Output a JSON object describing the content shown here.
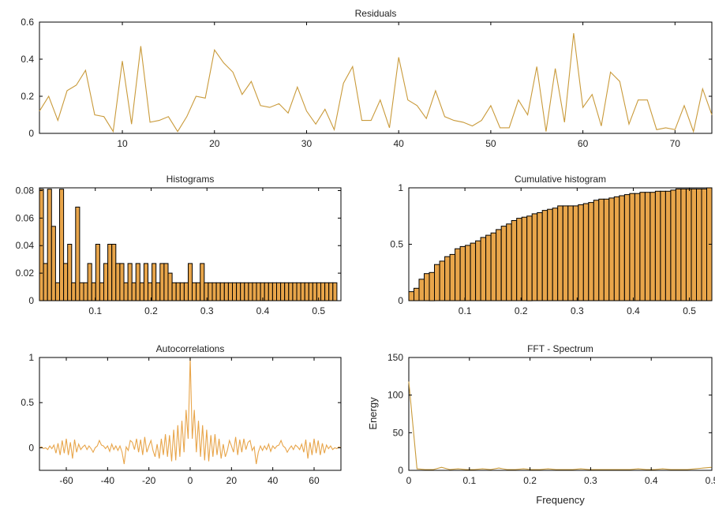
{
  "colors": {
    "series": "#e8a54a",
    "line": "#c99a3a",
    "axis": "#000000",
    "background": "#ffffff"
  },
  "chart_data": [
    {
      "type": "line",
      "title": "Residuals",
      "xlabel": "",
      "ylabel": "",
      "xlim": [
        1,
        74
      ],
      "ylim": [
        0,
        0.6
      ],
      "xticks": [
        10,
        20,
        30,
        40,
        50,
        60,
        70
      ],
      "yticks": [
        0,
        0.2,
        0.4,
        0.6
      ],
      "x": [
        1,
        2,
        3,
        4,
        5,
        6,
        7,
        8,
        9,
        10,
        11,
        12,
        13,
        14,
        15,
        16,
        17,
        18,
        19,
        20,
        21,
        22,
        23,
        24,
        25,
        26,
        27,
        28,
        29,
        30,
        31,
        32,
        33,
        34,
        35,
        36,
        37,
        38,
        39,
        40,
        41,
        42,
        43,
        44,
        45,
        46,
        47,
        48,
        49,
        50,
        51,
        52,
        53,
        54,
        55,
        56,
        57,
        58,
        59,
        60,
        61,
        62,
        63,
        64,
        65,
        66,
        67,
        68,
        69,
        70,
        71,
        72,
        73,
        74
      ],
      "values": [
        0.12,
        0.2,
        0.07,
        0.23,
        0.26,
        0.34,
        0.1,
        0.09,
        0.01,
        0.39,
        0.05,
        0.47,
        0.06,
        0.07,
        0.09,
        0.01,
        0.09,
        0.2,
        0.19,
        0.45,
        0.38,
        0.33,
        0.21,
        0.28,
        0.15,
        0.14,
        0.16,
        0.11,
        0.25,
        0.12,
        0.05,
        0.13,
        0.02,
        0.27,
        0.36,
        0.07,
        0.07,
        0.18,
        0.03,
        0.41,
        0.18,
        0.15,
        0.08,
        0.23,
        0.09,
        0.07,
        0.06,
        0.04,
        0.07,
        0.15,
        0.03,
        0.03,
        0.18,
        0.1,
        0.36,
        0.01,
        0.35,
        0.06,
        0.54,
        0.14,
        0.21,
        0.04,
        0.33,
        0.28,
        0.05,
        0.18,
        0.18,
        0.02,
        0.03,
        0.02,
        0.15,
        0.01,
        0.24,
        0.1
      ]
    },
    {
      "type": "bar",
      "title": "Histograms",
      "xlabel": "",
      "ylabel": "",
      "xlim": [
        0,
        0.54
      ],
      "ylim": [
        0,
        0.082
      ],
      "xticks": [
        0.1,
        0.2,
        0.3,
        0.4,
        0.5
      ],
      "yticks": [
        0,
        0.02,
        0.04,
        0.06,
        0.08
      ],
      "bin_width": 0.0072,
      "values": [
        0.081,
        0.027,
        0.081,
        0.054,
        0.013,
        0.081,
        0.027,
        0.041,
        0.013,
        0.068,
        0.013,
        0.013,
        0.027,
        0.013,
        0.041,
        0.013,
        0.027,
        0.041,
        0.041,
        0.027,
        0.027,
        0.013,
        0.027,
        0.013,
        0.027,
        0.013,
        0.027,
        0.013,
        0.027,
        0.013,
        0.027,
        0.027,
        0.02,
        0.013,
        0.013,
        0.013,
        0.013,
        0.027,
        0.013,
        0.013,
        0.027,
        0.013,
        0.013,
        0.013,
        0.013,
        0.013,
        0.013,
        0.013,
        0.013,
        0.013,
        0.013,
        0.013,
        0.013,
        0.013,
        0.013,
        0.013,
        0.013,
        0.013,
        0.013,
        0.013,
        0.013,
        0.013,
        0.013,
        0.013,
        0.013,
        0.013,
        0.013,
        0.013,
        0.013,
        0.013,
        0.013,
        0.013,
        0.013,
        0.013
      ]
    },
    {
      "type": "bar",
      "title": "Cumulative histogram",
      "xlabel": "",
      "ylabel": "",
      "xlim": [
        0,
        0.54
      ],
      "ylim": [
        0,
        1
      ],
      "xticks": [
        0.1,
        0.2,
        0.3,
        0.4,
        0.5
      ],
      "yticks": [
        0,
        0.5,
        1
      ],
      "values": [
        0.08,
        0.11,
        0.19,
        0.24,
        0.25,
        0.32,
        0.35,
        0.39,
        0.41,
        0.46,
        0.48,
        0.49,
        0.51,
        0.53,
        0.56,
        0.58,
        0.6,
        0.63,
        0.66,
        0.68,
        0.71,
        0.73,
        0.74,
        0.75,
        0.77,
        0.78,
        0.8,
        0.81,
        0.82,
        0.84,
        0.84,
        0.84,
        0.84,
        0.85,
        0.86,
        0.87,
        0.89,
        0.9,
        0.9,
        0.91,
        0.92,
        0.93,
        0.94,
        0.95,
        0.95,
        0.96,
        0.96,
        0.96,
        0.97,
        0.97,
        0.97,
        0.98,
        0.99,
        0.99,
        0.99,
        0.99,
        0.99,
        0.99,
        1.0
      ]
    },
    {
      "type": "line",
      "title": "Autocorrelations",
      "xlabel": "",
      "ylabel": "",
      "xlim": [
        -73,
        73
      ],
      "ylim": [
        -0.25,
        1
      ],
      "xticks": [
        -60,
        -40,
        -20,
        0,
        20,
        40,
        60
      ],
      "yticks": [
        0,
        0.5,
        1
      ],
      "x": [
        -73,
        -72,
        -71,
        -70,
        -69,
        -68,
        -67,
        -66,
        -65,
        -64,
        -63,
        -62,
        -61,
        -60,
        -59,
        -58,
        -57,
        -56,
        -55,
        -54,
        -53,
        -52,
        -51,
        -50,
        -49,
        -48,
        -47,
        -46,
        -45,
        -44,
        -43,
        -42,
        -41,
        -40,
        -39,
        -38,
        -37,
        -36,
        -35,
        -34,
        -33,
        -32,
        -31,
        -30,
        -29,
        -28,
        -27,
        -26,
        -25,
        -24,
        -23,
        -22,
        -21,
        -20,
        -19,
        -18,
        -17,
        -16,
        -15,
        -14,
        -13,
        -12,
        -11,
        -10,
        -9,
        -8,
        -7,
        -6,
        -5,
        -4,
        -3,
        -2,
        -1,
        0,
        1,
        2,
        3,
        4,
        5,
        6,
        7,
        8,
        9,
        10,
        11,
        12,
        13,
        14,
        15,
        16,
        17,
        18,
        19,
        20,
        21,
        22,
        23,
        24,
        25,
        26,
        27,
        28,
        29,
        30,
        31,
        32,
        33,
        34,
        35,
        36,
        37,
        38,
        39,
        40,
        41,
        42,
        43,
        44,
        45,
        46,
        47,
        48,
        49,
        50,
        51,
        52,
        53,
        54,
        55,
        56,
        57,
        58,
        59,
        60,
        61,
        62,
        63,
        64,
        65,
        66,
        67,
        68,
        69,
        70,
        71,
        72,
        73
      ],
      "values": [
        0.0,
        0.01,
        -0.01,
        0.0,
        -0.02,
        0.02,
        -0.01,
        0.03,
        -0.06,
        0.05,
        -0.08,
        0.08,
        -0.06,
        0.1,
        -0.08,
        0.06,
        -0.12,
        0.09,
        -0.05,
        0.04,
        -0.02,
        0.01,
        0.03,
        -0.02,
        0.02,
        -0.01,
        -0.05,
        0.0,
        0.02,
        0.08,
        0.03,
        0.02,
        -0.01,
        0.02,
        -0.04,
        0.04,
        -0.02,
        0.02,
        -0.03,
        0.02,
        -0.05,
        -0.18,
        0.01,
        -0.03,
        0.08,
        0.06,
        -0.02,
        0.1,
        -0.05,
        0.09,
        -0.08,
        0.12,
        -0.05,
        0.02,
        0.08,
        -0.03,
        -0.1,
        0.04,
        -0.12,
        0.1,
        -0.08,
        0.15,
        -0.1,
        0.14,
        -0.15,
        0.2,
        -0.14,
        0.25,
        -0.1,
        0.3,
        -0.05,
        0.42,
        0.1,
        1.0,
        0.1,
        0.42,
        -0.05,
        0.3,
        -0.1,
        0.25,
        -0.14,
        0.2,
        -0.15,
        0.14,
        -0.1,
        0.15,
        -0.08,
        0.1,
        -0.12,
        0.04,
        -0.1,
        -0.03,
        0.08,
        0.02,
        -0.05,
        0.12,
        -0.08,
        0.09,
        -0.05,
        0.1,
        -0.02,
        0.06,
        0.08,
        -0.03,
        0.01,
        -0.18,
        -0.05,
        0.02,
        -0.03,
        0.02,
        -0.02,
        0.04,
        -0.04,
        0.02,
        -0.01,
        0.02,
        0.03,
        0.08,
        0.02,
        0.0,
        -0.05,
        -0.01,
        0.02,
        -0.02,
        0.03,
        0.01,
        -0.02,
        0.04,
        -0.05,
        0.09,
        -0.12,
        0.06,
        -0.08,
        0.1,
        -0.06,
        0.08,
        -0.08,
        0.05,
        -0.06,
        0.03,
        -0.01,
        0.02,
        -0.02,
        0.0,
        -0.01,
        0.01,
        0.0
      ]
    },
    {
      "type": "line",
      "title": "FFT - Spectrum",
      "xlabel": "Frequency",
      "ylabel": "Energy",
      "xlim": [
        0,
        0.5
      ],
      "ylim": [
        0,
        150
      ],
      "xticks": [
        0,
        0.1,
        0.2,
        0.3,
        0.4,
        0.5
      ],
      "xtick_labels": [
        "0",
        "0.1",
        "0.2",
        "0.3",
        "0.4",
        "0.5"
      ],
      "yticks": [
        0,
        50,
        100,
        150
      ],
      "x": [
        0,
        0.0135,
        0.027,
        0.0405,
        0.054,
        0.0676,
        0.0811,
        0.0946,
        0.1081,
        0.1216,
        0.1351,
        0.1486,
        0.1622,
        0.1757,
        0.1892,
        0.2027,
        0.2162,
        0.2297,
        0.2432,
        0.2568,
        0.2703,
        0.2838,
        0.2973,
        0.3108,
        0.3243,
        0.3378,
        0.3514,
        0.3649,
        0.3784,
        0.3919,
        0.4054,
        0.4189,
        0.4324,
        0.4459,
        0.4595,
        0.473,
        0.4865,
        0.5
      ],
      "values": [
        118,
        2,
        1,
        1,
        4,
        1,
        2,
        1,
        1,
        2,
        1,
        3,
        1,
        1,
        2,
        1,
        1,
        2,
        1,
        1,
        1,
        2,
        1,
        1,
        1,
        1,
        1,
        1,
        2,
        1,
        1,
        2,
        1,
        1,
        1,
        2,
        3,
        4
      ]
    }
  ]
}
